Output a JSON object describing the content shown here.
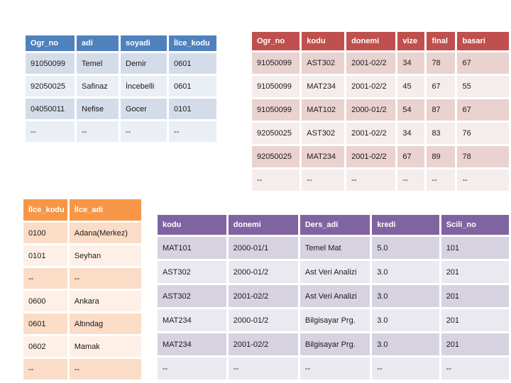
{
  "slide": {
    "background_color": "#ffffff"
  },
  "tables": {
    "students": {
      "header_color": "#4f81bd",
      "header_text_color": "#ffffff",
      "band_dark": "#d5dce9",
      "band_light": "#eaeef5",
      "columns": [
        "Ogr_no",
        "adi",
        "soyadi",
        "İlce_kodu"
      ],
      "rows": [
        [
          "91050099",
          "Temel",
          "Demir",
          "0601"
        ],
        [
          "92050025",
          "Safinaz",
          "İncebelli",
          "0601"
        ],
        [
          "04050011",
          "Nefise",
          "Gocer",
          "0101"
        ],
        [
          "--",
          "--",
          "--",
          "--"
        ]
      ]
    },
    "grades": {
      "header_color": "#c0504d",
      "header_text_color": "#ffffff",
      "band_dark": "#e9d2d0",
      "band_light": "#f5edec",
      "columns": [
        "Ogr_no",
        "kodu",
        "donemi",
        "vize",
        "final",
        "basari"
      ],
      "rows": [
        [
          "91050099",
          "AST302",
          "2001-02/2",
          "34",
          "78",
          "67"
        ],
        [
          "91050099",
          "MAT234",
          "2001-02/2",
          "45",
          "67",
          "55"
        ],
        [
          "91050099",
          "MAT102",
          "2000-01/2",
          "54",
          "87",
          "67"
        ],
        [
          "92050025",
          "AST302",
          "2001-02/2",
          "34",
          "83",
          "76"
        ],
        [
          "92050025",
          "MAT234",
          "2001-02/2",
          "67",
          "89",
          "78"
        ],
        [
          "--",
          "--",
          "--",
          "--",
          "--",
          "--"
        ]
      ]
    },
    "districts": {
      "header_color": "#f79646",
      "header_text_color": "#ffffff",
      "band_dark": "#fbdcc7",
      "band_light": "#fef0e6",
      "columns": [
        "İlce_kodu",
        "İlce_adi"
      ],
      "rows": [
        [
          "0100",
          "Adana(Merkez)"
        ],
        [
          "0101",
          "Seyhan"
        ],
        [
          "--",
          "--"
        ],
        [
          "0600",
          "Ankara"
        ],
        [
          "0601",
          "Altındag"
        ],
        [
          "0602",
          "Mamak"
        ],
        [
          "--",
          "--"
        ]
      ]
    },
    "courses": {
      "header_color": "#8064a2",
      "header_text_color": "#ffffff",
      "band_dark": "#d7d2df",
      "band_light": "#ebe9f0",
      "columns": [
        "kodu",
        "donemi",
        "Ders_adi",
        "kredi",
        "Scili_no"
      ],
      "rows": [
        [
          "MAT101",
          "2000-01/1",
          "Temel Mat",
          "5.0",
          "101"
        ],
        [
          "AST302",
          "2000-01/2",
          "Ast Veri Analizi",
          "3.0",
          "201"
        ],
        [
          "AST302",
          "2001-02/2",
          "Ast Veri Analizi",
          "3.0",
          "201"
        ],
        [
          "MAT234",
          "2000-01/2",
          "Bilgisayar Prg.",
          "3.0",
          "201"
        ],
        [
          "MAT234",
          "2001-02/2",
          "Bilgisayar Prg.",
          "3.0",
          "201"
        ],
        [
          "--",
          "--",
          "--",
          "--",
          "--"
        ]
      ]
    }
  }
}
